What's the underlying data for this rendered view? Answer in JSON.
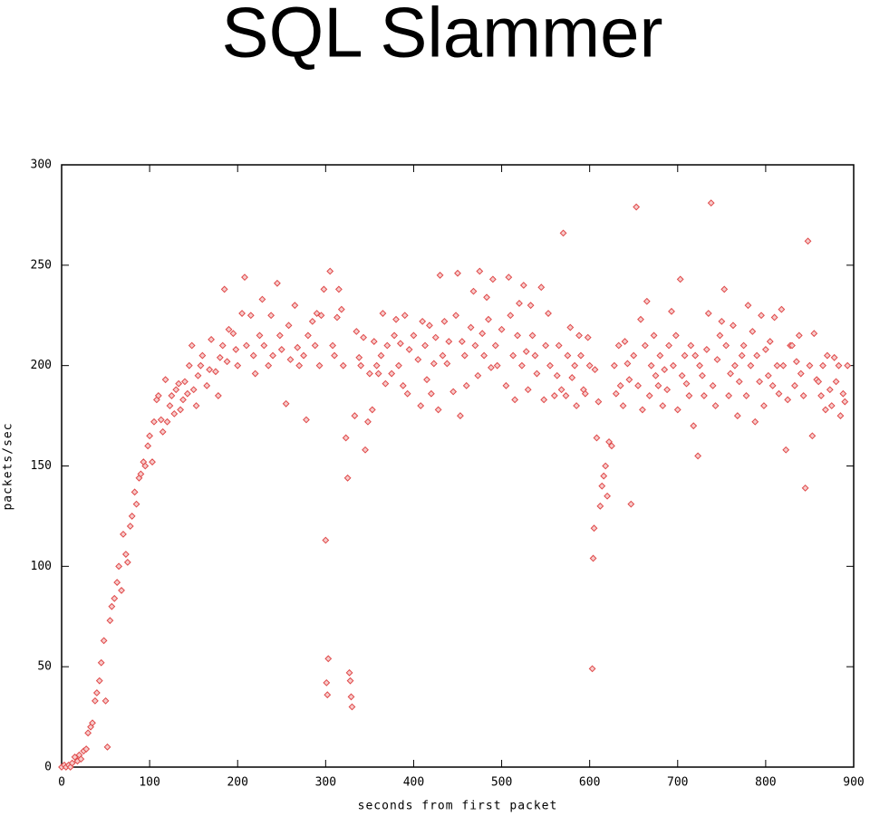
{
  "chart_data": {
    "type": "scatter",
    "title": "SQL Slammer",
    "x_label": "seconds from first packet",
    "y_label": "packets/sec",
    "xlim": [
      0,
      900
    ],
    "ylim": [
      0,
      300
    ],
    "xticks": [
      0,
      100,
      200,
      300,
      400,
      500,
      600,
      700,
      800,
      900
    ],
    "yticks": [
      0,
      50,
      100,
      150,
      200,
      250,
      300
    ],
    "x": [
      0,
      3,
      5,
      8,
      10,
      12,
      15,
      18,
      20,
      22,
      25,
      28,
      30,
      33,
      35,
      38,
      40,
      43,
      45,
      48,
      50,
      52,
      55,
      57,
      60,
      63,
      65,
      68,
      70,
      73,
      75,
      78,
      80,
      83,
      85,
      88,
      90,
      93,
      95,
      98,
      100,
      103,
      105,
      108,
      110,
      113,
      115,
      118,
      120,
      123,
      125,
      128,
      130,
      133,
      135,
      138,
      140,
      143,
      145,
      148,
      150,
      153,
      155,
      158,
      160,
      165,
      168,
      170,
      175,
      178,
      180,
      183,
      185,
      188,
      190,
      195,
      198,
      200,
      205,
      208,
      210,
      215,
      218,
      220,
      225,
      228,
      230,
      235,
      238,
      240,
      245,
      248,
      250,
      255,
      258,
      260,
      265,
      268,
      270,
      275,
      278,
      280,
      285,
      288,
      290,
      293,
      295,
      298,
      300,
      301,
      302,
      303,
      305,
      308,
      310,
      313,
      315,
      318,
      320,
      323,
      325,
      327,
      328,
      329,
      330,
      333,
      335,
      338,
      340,
      343,
      345,
      348,
      350,
      353,
      355,
      358,
      360,
      363,
      365,
      368,
      370,
      375,
      378,
      380,
      383,
      385,
      388,
      390,
      393,
      395,
      400,
      405,
      408,
      410,
      413,
      415,
      418,
      420,
      423,
      425,
      428,
      430,
      433,
      435,
      438,
      440,
      445,
      448,
      450,
      453,
      455,
      458,
      460,
      465,
      468,
      470,
      473,
      475,
      478,
      480,
      483,
      485,
      488,
      490,
      493,
      495,
      500,
      505,
      508,
      510,
      513,
      515,
      518,
      520,
      523,
      525,
      528,
      530,
      533,
      535,
      538,
      540,
      545,
      548,
      550,
      553,
      555,
      560,
      563,
      565,
      568,
      570,
      573,
      575,
      578,
      580,
      583,
      585,
      588,
      590,
      593,
      595,
      598,
      600,
      603,
      604,
      605,
      606,
      608,
      610,
      612,
      614,
      616,
      618,
      620,
      622,
      625,
      628,
      630,
      633,
      635,
      638,
      640,
      643,
      645,
      647,
      650,
      653,
      655,
      658,
      660,
      663,
      665,
      668,
      670,
      673,
      675,
      678,
      680,
      683,
      685,
      688,
      690,
      693,
      695,
      698,
      700,
      703,
      705,
      708,
      710,
      713,
      715,
      718,
      720,
      723,
      725,
      728,
      730,
      733,
      735,
      738,
      740,
      743,
      745,
      748,
      750,
      753,
      755,
      758,
      760,
      763,
      765,
      768,
      770,
      773,
      775,
      778,
      780,
      783,
      785,
      788,
      790,
      793,
      795,
      798,
      800,
      803,
      805,
      808,
      810,
      813,
      815,
      818,
      820,
      823,
      825,
      828,
      830,
      833,
      835,
      838,
      840,
      843,
      845,
      848,
      850,
      853,
      855,
      858,
      860,
      863,
      865,
      868,
      870,
      873,
      875,
      878,
      880,
      883,
      885,
      888,
      890,
      893
    ],
    "series": [
      {
        "color": "#e04848",
        "values": [
          0,
          1,
          0,
          1,
          0,
          2,
          5,
          3,
          6,
          4,
          8,
          9,
          17,
          20,
          22,
          33,
          37,
          43,
          52,
          63,
          33,
          10,
          73,
          80,
          84,
          92,
          100,
          88,
          116,
          106,
          102,
          120,
          125,
          137,
          131,
          144,
          146,
          152,
          150,
          160,
          165,
          152,
          172,
          183,
          185,
          173,
          167,
          193,
          172,
          180,
          185,
          176,
          188,
          191,
          178,
          183,
          192,
          186,
          200,
          210,
          188,
          180,
          195,
          200,
          205,
          190,
          198,
          213,
          197,
          185,
          204,
          210,
          238,
          202,
          218,
          216,
          208,
          200,
          226,
          244,
          210,
          225,
          205,
          196,
          215,
          233,
          210,
          200,
          225,
          205,
          241,
          215,
          208,
          181,
          220,
          203,
          230,
          209,
          200,
          205,
          173,
          215,
          222,
          210,
          226,
          200,
          225,
          238,
          113,
          42,
          36,
          54,
          247,
          210,
          205,
          224,
          238,
          228,
          200,
          164,
          144,
          47,
          43,
          35,
          30,
          175,
          217,
          204,
          200,
          214,
          158,
          172,
          196,
          178,
          212,
          200,
          196,
          205,
          226,
          191,
          210,
          196,
          215,
          223,
          200,
          211,
          190,
          225,
          186,
          208,
          215,
          203,
          180,
          222,
          210,
          193,
          220,
          186,
          201,
          214,
          178,
          245,
          205,
          222,
          201,
          212,
          187,
          225,
          246,
          175,
          212,
          205,
          190,
          219,
          237,
          210,
          195,
          247,
          216,
          205,
          234,
          223,
          199,
          243,
          210,
          200,
          218,
          190,
          244,
          225,
          205,
          183,
          215,
          231,
          200,
          240,
          207,
          188,
          230,
          215,
          205,
          196,
          239,
          183,
          210,
          226,
          200,
          185,
          195,
          210,
          188,
          266,
          185,
          205,
          219,
          194,
          200,
          180,
          215,
          205,
          188,
          186,
          214,
          200,
          49,
          104,
          119,
          198,
          164,
          182,
          130,
          140,
          145,
          150,
          135,
          162,
          160,
          200,
          186,
          210,
          190,
          180,
          212,
          201,
          193,
          131,
          205,
          279,
          190,
          223,
          178,
          210,
          232,
          185,
          200,
          215,
          195,
          190,
          205,
          180,
          198,
          188,
          210,
          227,
          200,
          215,
          178,
          243,
          195,
          205,
          191,
          185,
          210,
          170,
          205,
          155,
          200,
          195,
          185,
          208,
          226,
          281,
          190,
          180,
          203,
          215,
          222,
          238,
          210,
          185,
          196,
          220,
          200,
          175,
          192,
          205,
          210,
          185,
          230,
          200,
          217,
          172,
          205,
          192,
          225,
          180,
          208,
          195,
          212,
          190,
          224,
          200,
          186,
          228,
          200,
          158,
          183,
          210,
          210,
          190,
          202,
          215,
          196,
          185,
          139,
          262,
          200,
          165,
          216,
          193,
          192,
          185,
          200,
          178,
          205,
          188,
          180,
          204,
          192,
          200,
          175,
          186,
          182,
          200
        ]
      }
    ]
  }
}
